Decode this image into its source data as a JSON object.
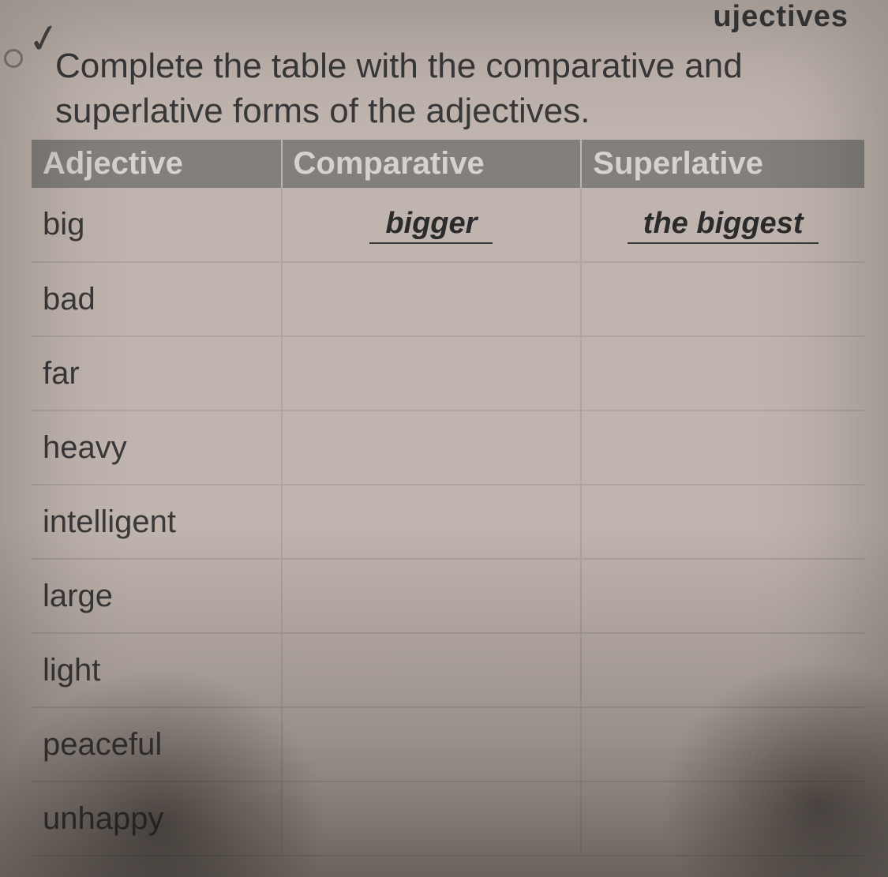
{
  "header_fragment": "ujectives",
  "instruction": "Complete the table with the comparative and superlative forms of the adjectives.",
  "table": {
    "columns": [
      "Adjective",
      "Comparative",
      "Superlative"
    ],
    "header_bg": "#8d8a87",
    "header_fg": "#ebe8e4",
    "row_bg": "#d4c8c0",
    "border_color": "#c0b5ac",
    "text_color": "#3a3a3a",
    "fontsize_header": 40,
    "fontsize_cell": 40,
    "column_widths_pct": [
      30,
      36,
      34
    ],
    "rows": [
      {
        "adjective": "big",
        "comparative": "bigger",
        "superlative": "the biggest"
      },
      {
        "adjective": "bad",
        "comparative": "",
        "superlative": ""
      },
      {
        "adjective": "far",
        "comparative": "",
        "superlative": ""
      },
      {
        "adjective": "heavy",
        "comparative": "",
        "superlative": ""
      },
      {
        "adjective": "intelligent",
        "comparative": "",
        "superlative": ""
      },
      {
        "adjective": "large",
        "comparative": "",
        "superlative": ""
      },
      {
        "adjective": "light",
        "comparative": "",
        "superlative": ""
      },
      {
        "adjective": "peaceful",
        "comparative": "",
        "superlative": ""
      },
      {
        "adjective": "unhappy",
        "comparative": "",
        "superlative": ""
      }
    ]
  },
  "styling": {
    "page_bg": "#d4c8c0",
    "answer_font": "Comic Sans MS",
    "answer_color": "#2a2a2a",
    "answer_underline_color": "#3a3a3a"
  }
}
